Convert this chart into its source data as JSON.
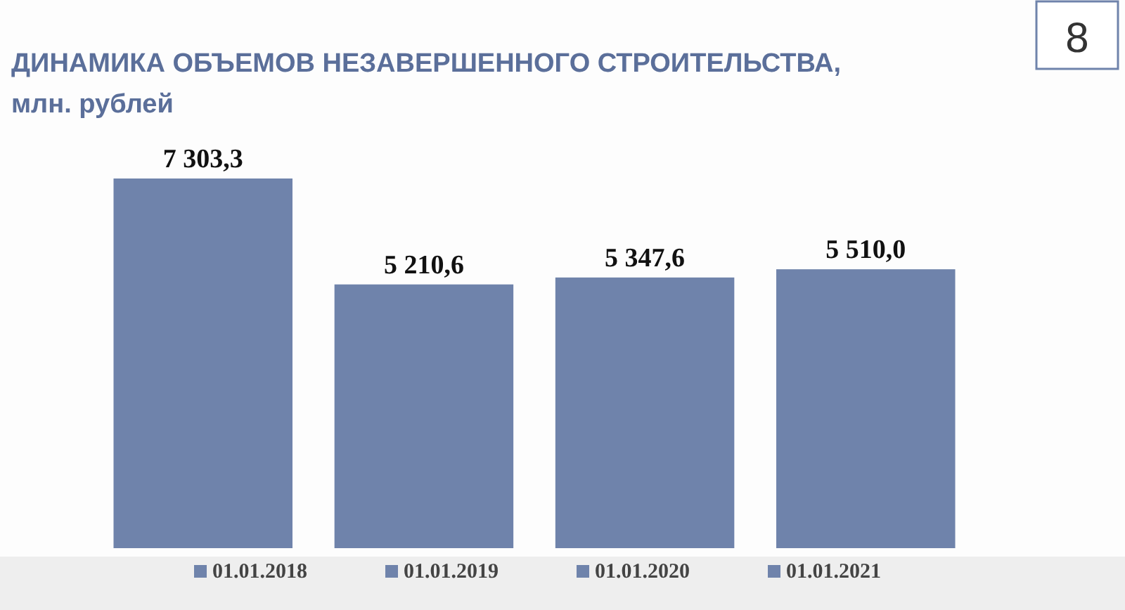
{
  "chart_data": {
    "type": "bar",
    "title": "ДИНАМИКА ОБЪЕМОВ НЕЗАВЕРШЕННОГО СТРОИТЕЛЬСТВА,",
    "subtitle": "млн. рублей",
    "annotations": [
      "8"
    ],
    "categories": [
      null
    ],
    "series": [
      {
        "name": "01.01.2018",
        "color": "#6f83ab",
        "values": [
          7303.3
        ],
        "value_labels": [
          "7 303,3"
        ]
      },
      {
        "name": "01.01.2019",
        "color": "#6f83ab",
        "values": [
          5210.6
        ],
        "value_labels": [
          "5 210,6"
        ]
      },
      {
        "name": "01.01.2020",
        "color": "#6f83ab",
        "values": [
          5347.6
        ],
        "value_labels": [
          "5 347,6"
        ]
      },
      {
        "name": "01.01.2021",
        "color": "#6f83ab",
        "values": [
          5510.0
        ],
        "value_labels": [
          "5 510,0"
        ]
      }
    ],
    "legend": "bottom",
    "grid": false
  }
}
